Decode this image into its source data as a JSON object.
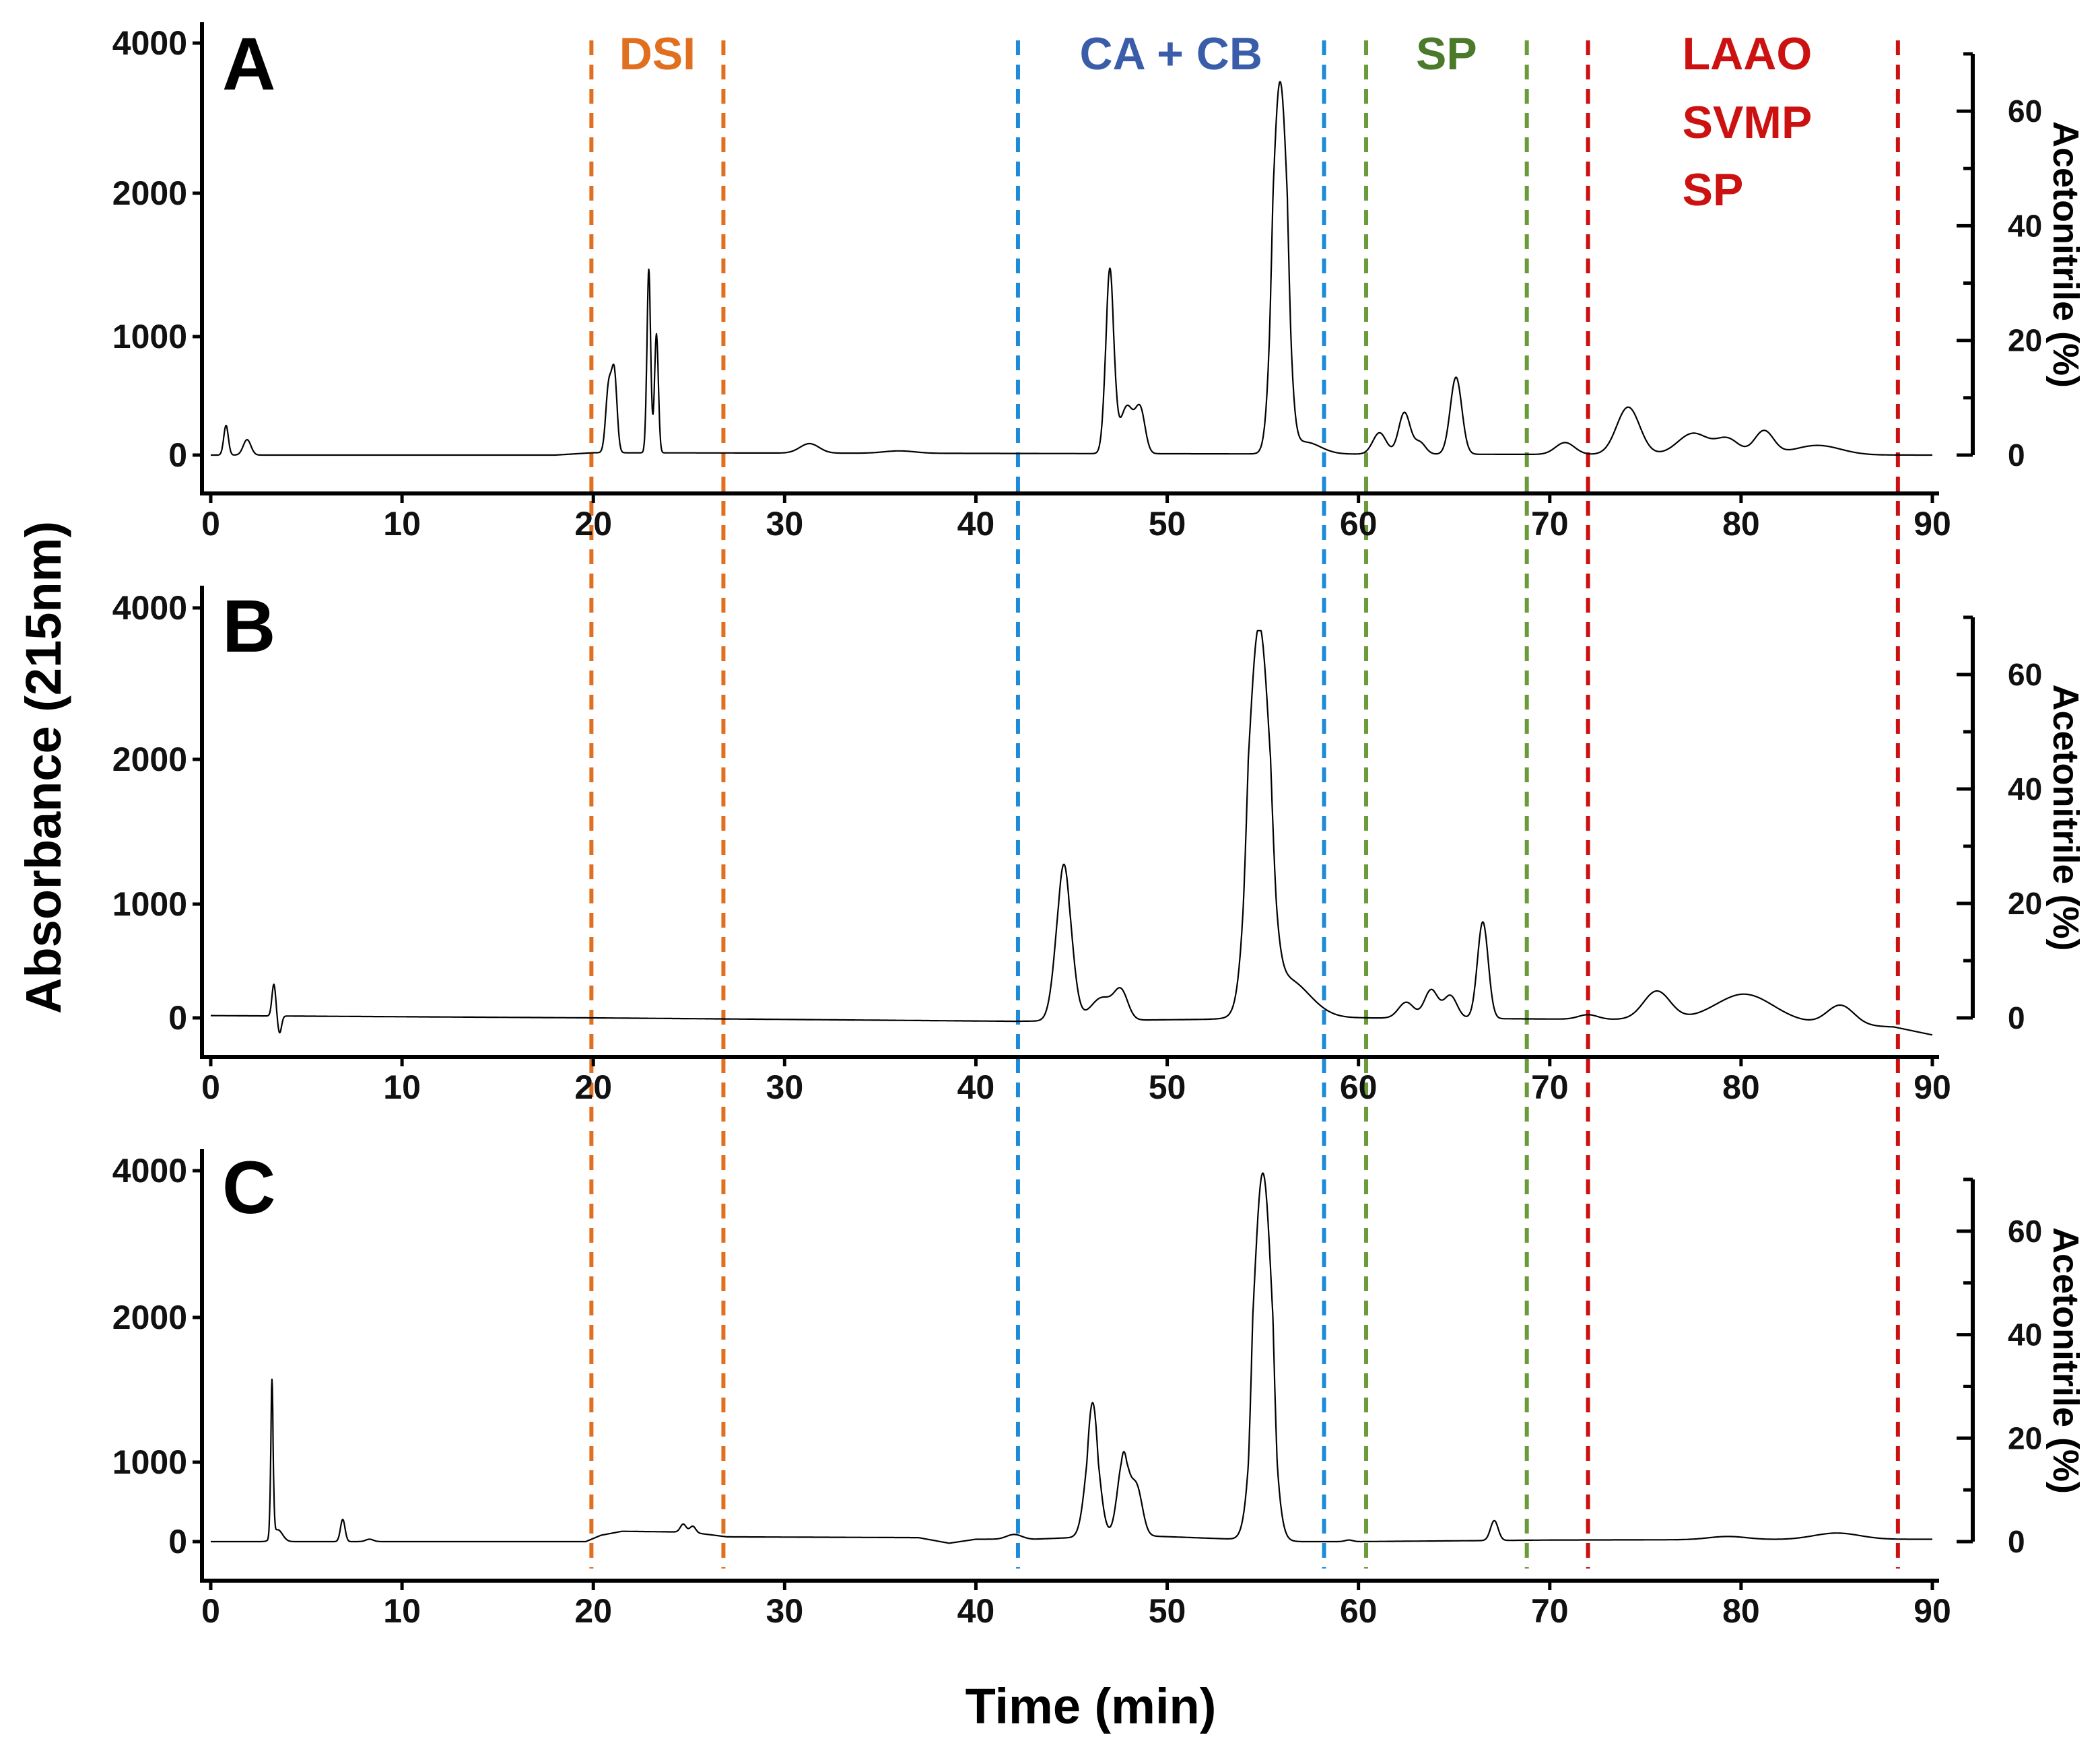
{
  "chart_data": {
    "type": "line",
    "x_axis": {
      "label": "Time (min)",
      "range": [
        0,
        90
      ],
      "ticks": [
        0,
        10,
        20,
        30,
        40,
        50,
        60,
        70,
        80,
        90
      ]
    },
    "y_axis_left": {
      "label": "Absorbance (215nm)",
      "tick_labels": [
        "0",
        "1000",
        "2000",
        "4000"
      ]
    },
    "y_axis_right": {
      "label": "Acetonitrile  (%)",
      "range": [
        0,
        70
      ],
      "ticks": [
        0,
        20,
        40,
        60
      ]
    },
    "regions": [
      {
        "label": "DSI",
        "start": 19.9,
        "end": 26.8,
        "color": "#E07020"
      },
      {
        "label": "CA + CB",
        "start": 42.2,
        "end": 58.2,
        "color": "#3A5DAA",
        "line_color": "#1E8BD8"
      },
      {
        "label": "SP",
        "start": 60.4,
        "end": 68.8,
        "color": "#4A7A2A",
        "line_color": "#6A9A3A"
      },
      {
        "label": "LAAO",
        "start": 72.0,
        "end": 88.2,
        "color": "#CC1111"
      }
    ],
    "extra_region_labels": [
      "SVMP",
      "SP"
    ],
    "panels": [
      {
        "label": "A",
        "peaks": [
          [
            0.8,
            250,
            0.12
          ],
          [
            1.9,
            130,
            0.2
          ],
          [
            20.8,
            550,
            0.15
          ],
          [
            21.1,
            650,
            0.14
          ],
          [
            22.9,
            1450,
            0.1
          ],
          [
            23.3,
            1000,
            0.1
          ],
          [
            31.3,
            80,
            0.5
          ],
          [
            36.0,
            20,
            0.8
          ],
          [
            47.0,
            1450,
            0.22
          ],
          [
            47.9,
            400,
            0.35
          ],
          [
            48.6,
            350,
            0.25
          ],
          [
            55.9,
            3450,
            0.35
          ],
          [
            57.2,
            100,
            0.8
          ],
          [
            61.1,
            180,
            0.35
          ],
          [
            62.4,
            350,
            0.3
          ],
          [
            63.2,
            100,
            0.3
          ],
          [
            65.1,
            650,
            0.3
          ],
          [
            70.8,
            100,
            0.5
          ],
          [
            74.1,
            400,
            0.6
          ],
          [
            77.5,
            180,
            0.8
          ],
          [
            79.3,
            130,
            0.6
          ],
          [
            81.2,
            200,
            0.5
          ],
          [
            84.0,
            80,
            1.2
          ]
        ],
        "baseline": [
          [
            0,
            0
          ],
          [
            18,
            0
          ],
          [
            20,
            20
          ],
          [
            90,
            0
          ]
        ]
      },
      {
        "label": "B",
        "peaks": [
          [
            3.3,
            280,
            0.1
          ],
          [
            3.6,
            -150,
            0.1
          ],
          [
            44.6,
            1300,
            0.4
          ],
          [
            46.6,
            200,
            0.6
          ],
          [
            47.6,
            230,
            0.35
          ],
          [
            54.8,
            3600,
            0.5
          ],
          [
            56.2,
            350,
            1.2
          ],
          [
            62.5,
            140,
            0.4
          ],
          [
            63.8,
            250,
            0.35
          ],
          [
            64.8,
            200,
            0.35
          ],
          [
            66.5,
            850,
            0.28
          ],
          [
            72.0,
            40,
            0.5
          ],
          [
            75.6,
            250,
            0.7
          ],
          [
            80.2,
            230,
            1.5
          ],
          [
            85.2,
            170,
            0.7
          ]
        ],
        "baseline": [
          [
            0,
            20
          ],
          [
            20,
            0
          ],
          [
            42,
            -30
          ],
          [
            60,
            0
          ],
          [
            80,
            -20
          ],
          [
            88,
            -80
          ],
          [
            90,
            -150
          ]
        ],
        "clip": 3700
      },
      {
        "label": "C",
        "peaks": [
          [
            3.2,
            1500,
            0.07
          ],
          [
            3.5,
            150,
            0.25
          ],
          [
            6.9,
            280,
            0.12
          ],
          [
            8.3,
            30,
            0.2
          ],
          [
            24.7,
            100,
            0.15
          ],
          [
            25.2,
            80,
            0.15
          ],
          [
            42.0,
            60,
            0.4
          ],
          [
            46.1,
            1350,
            0.35
          ],
          [
            47.7,
            950,
            0.3
          ],
          [
            48.4,
            600,
            0.3
          ],
          [
            55.0,
            3950,
            0.45
          ],
          [
            59.5,
            20,
            0.2
          ],
          [
            67.1,
            250,
            0.2
          ],
          [
            79.3,
            40,
            1.0
          ],
          [
            85.0,
            80,
            1.2
          ]
        ],
        "baseline": [
          [
            0,
            0
          ],
          [
            19.6,
            0
          ],
          [
            20.4,
            80
          ],
          [
            21.5,
            130
          ],
          [
            25,
            120
          ],
          [
            27,
            60
          ],
          [
            37,
            50
          ],
          [
            38.6,
            -20
          ],
          [
            40,
            30
          ],
          [
            43,
            30
          ],
          [
            45,
            50
          ],
          [
            48,
            80
          ],
          [
            57,
            0
          ],
          [
            60,
            0
          ],
          [
            70,
            20
          ],
          [
            90,
            30
          ]
        ]
      }
    ]
  }
}
